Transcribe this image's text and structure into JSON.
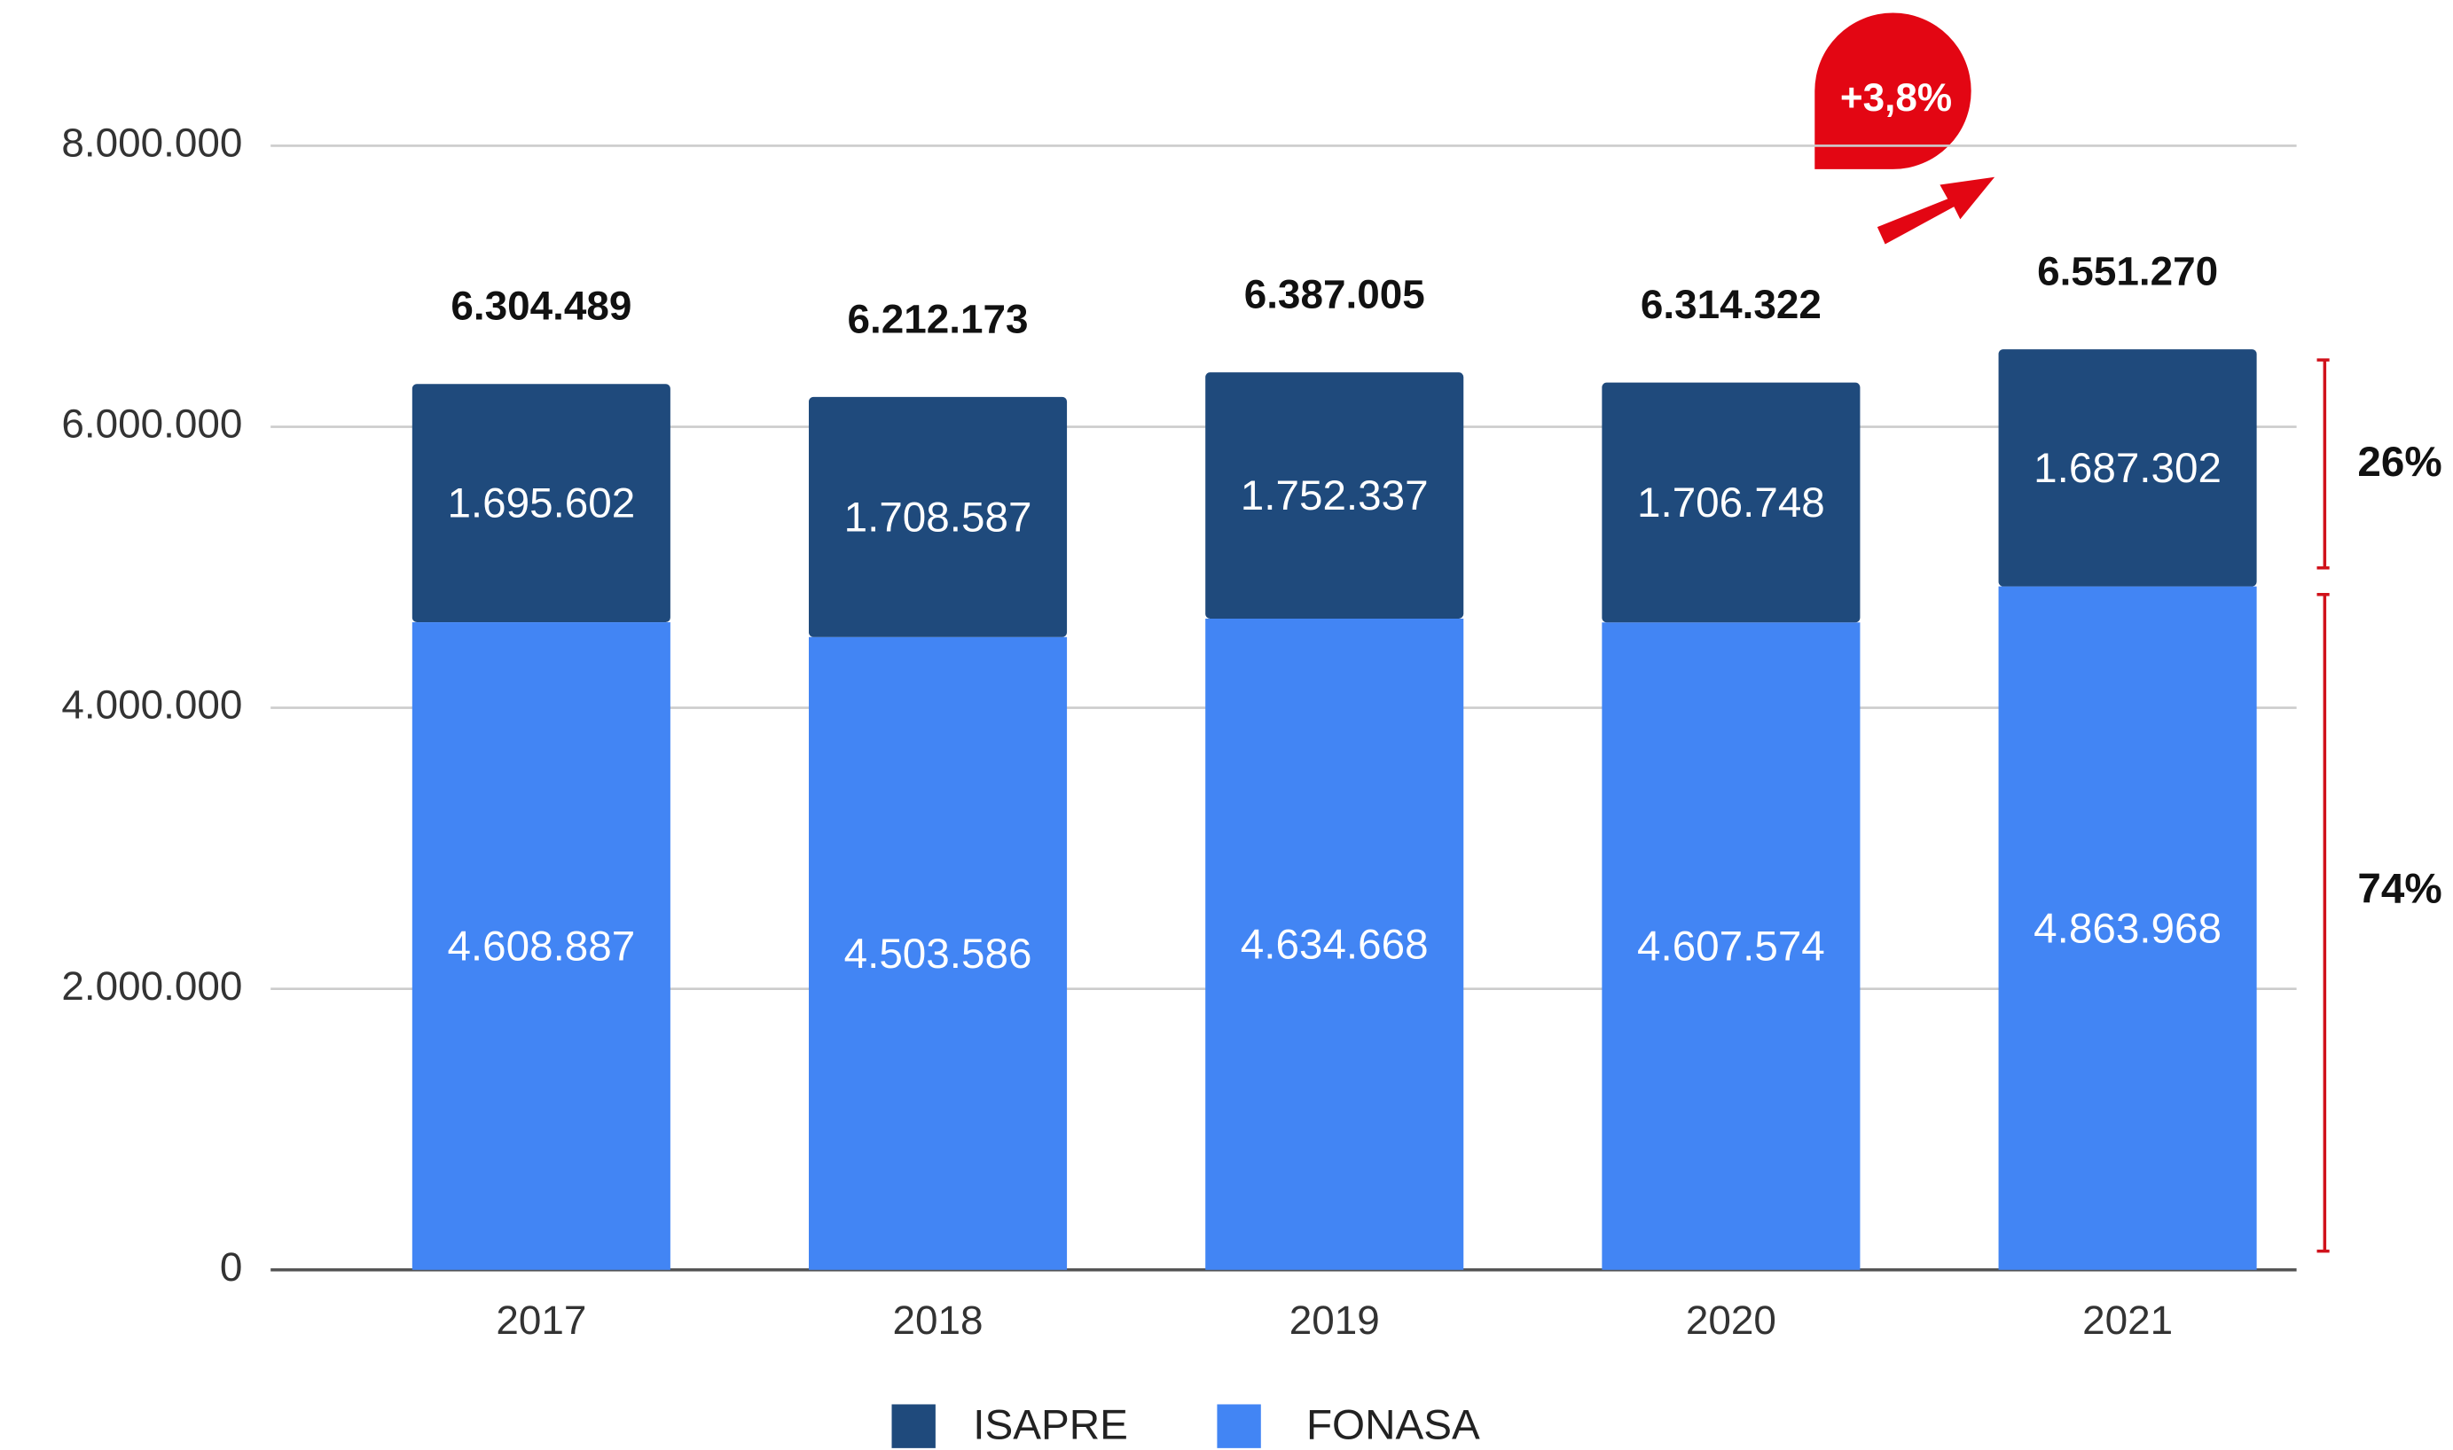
{
  "chart_data": {
    "type": "stacked_bar",
    "categories": [
      "2017",
      "2018",
      "2019",
      "2020",
      "2021"
    ],
    "series": [
      {
        "name": "ISAPRE",
        "color": "#1f4a7c",
        "values": [
          1695602,
          1708587,
          1752337,
          1706748,
          1687302
        ],
        "value_labels": [
          "1.695.602",
          "1.708.587",
          "1.752.337",
          "1.706.748",
          "1.687.302"
        ]
      },
      {
        "name": "FONASA",
        "color": "#4285f4",
        "values": [
          4608887,
          4503586,
          4634668,
          4607574,
          4863968
        ],
        "value_labels": [
          "4.608.887",
          "4.503.586",
          "4.634.668",
          "4.607.574",
          "4.863.968"
        ]
      }
    ],
    "totals": {
      "values": [
        6304489,
        6212173,
        6387005,
        6314322,
        6551270
      ],
      "value_labels": [
        "6.304.489",
        "6.212.173",
        "6.387.005",
        "6.314.322",
        "6.551.270"
      ]
    },
    "ylim": [
      0,
      8000000
    ],
    "yticks": [
      0,
      {
        "value": 2000000,
        "label": "2.000.000"
      },
      {
        "value": 4000000,
        "label": "4.000.000"
      },
      {
        "value": 6000000,
        "label": "6.000.000"
      },
      {
        "value": 8000000,
        "label": "8.000.000"
      }
    ],
    "grid": true,
    "legend": "bottom",
    "annotations": [
      "+3,8%",
      "26%",
      "74%"
    ]
  }
}
